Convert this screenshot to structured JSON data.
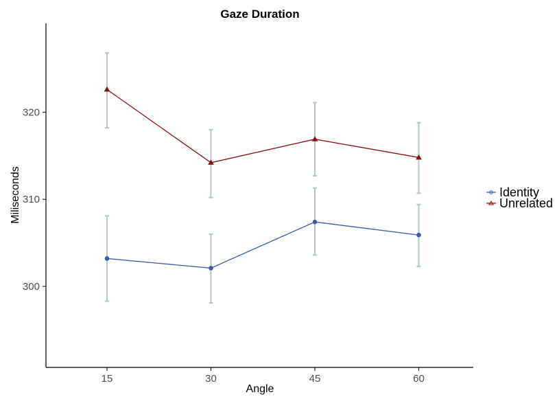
{
  "colors": {
    "identity": "#3b5ba5",
    "unrelated": "#8b0f14",
    "error_bar": "#b4c8c8",
    "axis": "#000000"
  },
  "chart_data": {
    "type": "line",
    "title": "Gaze Duration",
    "xlabel": "Angle",
    "ylabel": "Miliseconds",
    "categories": [
      "15",
      "30",
      "45",
      "60"
    ],
    "x_ticks": [
      "15",
      "30",
      "45",
      "60"
    ],
    "y_ticks": [
      "300",
      "310",
      "320"
    ],
    "y_tick_values": [
      300,
      310,
      320
    ],
    "ylim": [
      290.7,
      330.2
    ],
    "grid": false,
    "legend_position": "right",
    "series": [
      {
        "name": "Identity",
        "marker": "circle",
        "values": [
          303.2,
          302.1,
          307.4,
          305.9
        ],
        "error_low": [
          298.3,
          298.1,
          303.6,
          302.3
        ],
        "error_high": [
          308.1,
          306.0,
          311.3,
          309.4
        ]
      },
      {
        "name": "Unrelated",
        "marker": "triangle",
        "values": [
          322.6,
          314.2,
          316.9,
          314.8
        ],
        "error_low": [
          318.2,
          310.2,
          312.7,
          310.7
        ],
        "error_high": [
          326.8,
          318.0,
          321.1,
          318.8
        ]
      }
    ]
  }
}
